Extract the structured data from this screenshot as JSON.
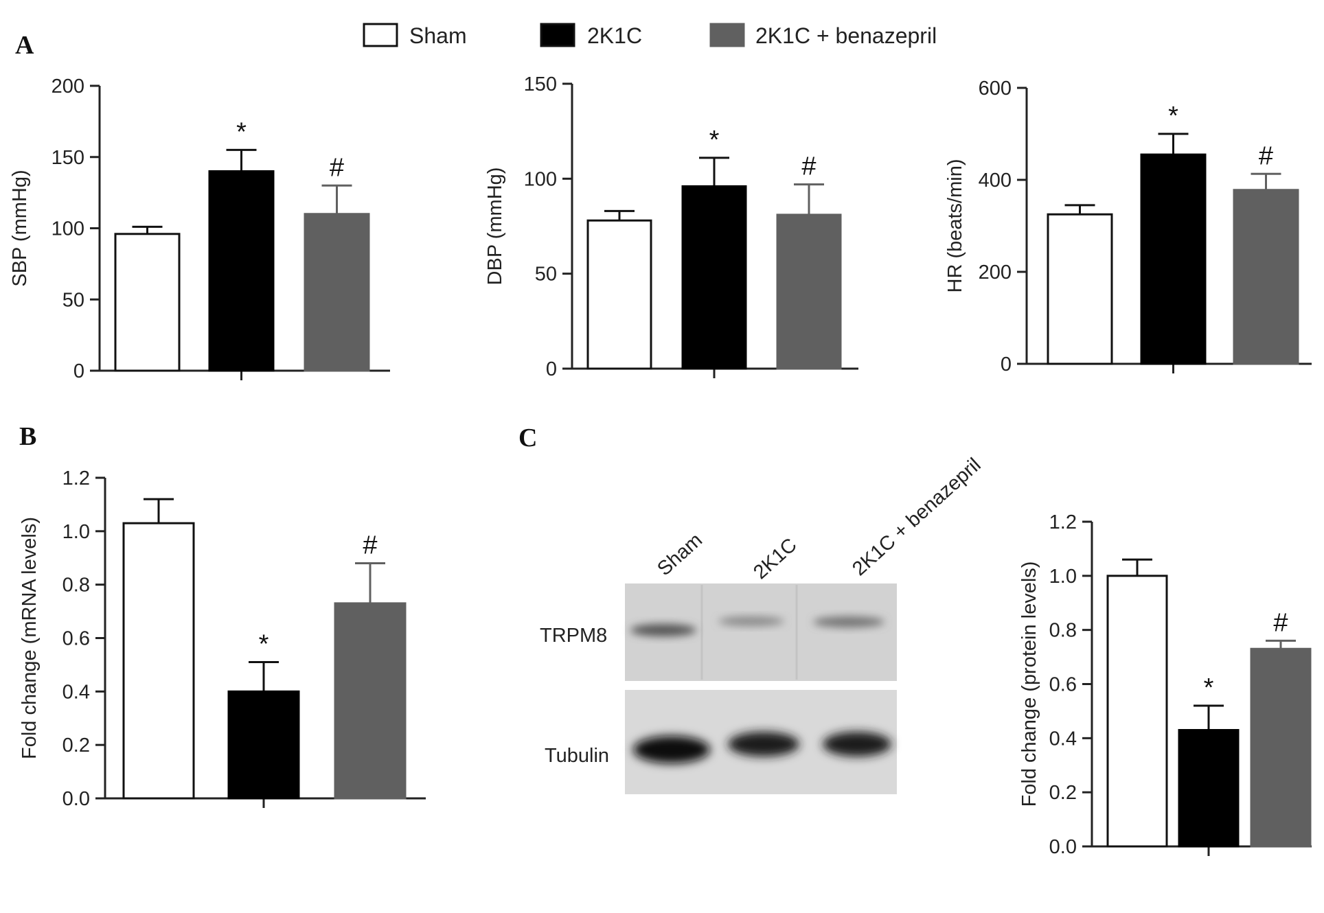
{
  "colors": {
    "sham": "#ffffff",
    "k2k1c": "#000000",
    "benazepril": "#606060",
    "axis": "#222222"
  },
  "legend": [
    {
      "label": "Sham",
      "color": "#ffffff"
    },
    {
      "label": "2K1C",
      "color": "#000000"
    },
    {
      "label": "2K1C + benazepril",
      "color": "#606060"
    }
  ],
  "panel_letters": {
    "a": "A",
    "b": "B",
    "c": "C"
  },
  "blot": {
    "lanes": [
      "Sham",
      "2K1C",
      "2K1C + benazepril"
    ],
    "rows": [
      "TRPM8",
      "Tubulin"
    ]
  },
  "chart_data": [
    {
      "id": "sbp",
      "type": "bar",
      "panel": "A",
      "categories": [
        "Sham",
        "2K1C",
        "2K1C + benazepril"
      ],
      "values": [
        96,
        140,
        110
      ],
      "errors": [
        5,
        15,
        20
      ],
      "significance": [
        "",
        "*",
        "#"
      ],
      "ylabel": "SBP (mmHg)",
      "xlabel": "",
      "ylim": [
        0,
        200
      ],
      "yticks": [
        0,
        50,
        100,
        150,
        200
      ],
      "yticklabels": [
        "0",
        "50",
        "100",
        "150",
        "200"
      ]
    },
    {
      "id": "dbp",
      "type": "bar",
      "panel": "A",
      "categories": [
        "Sham",
        "2K1C",
        "2K1C + benazepril"
      ],
      "values": [
        78,
        96,
        81
      ],
      "errors": [
        5,
        15,
        16
      ],
      "significance": [
        "",
        "*",
        "#"
      ],
      "ylabel": "DBP (mmHg)",
      "xlabel": "",
      "ylim": [
        0,
        150
      ],
      "yticks": [
        0,
        50,
        100,
        150
      ],
      "yticklabels": [
        "0",
        "50",
        "100",
        "150"
      ]
    },
    {
      "id": "hr",
      "type": "bar",
      "panel": "A",
      "categories": [
        "Sham",
        "2K1C",
        "2K1C + benazepril"
      ],
      "values": [
        325,
        455,
        378
      ],
      "errors": [
        20,
        45,
        35
      ],
      "significance": [
        "",
        "*",
        "#"
      ],
      "ylabel": "HR (beats/min)",
      "xlabel": "",
      "ylim": [
        0,
        600
      ],
      "yticks": [
        0,
        200,
        400,
        600
      ],
      "yticklabels": [
        "0",
        "200",
        "400",
        "600"
      ]
    },
    {
      "id": "mrna",
      "type": "bar",
      "panel": "B",
      "categories": [
        "Sham",
        "2K1C",
        "2K1C + benazepril"
      ],
      "values": [
        1.03,
        0.4,
        0.73
      ],
      "errors": [
        0.09,
        0.11,
        0.15
      ],
      "significance": [
        "",
        "*",
        "#"
      ],
      "ylabel": "Fold change (mRNA levels)",
      "xlabel": "",
      "ylim": [
        0,
        1.2
      ],
      "yticks": [
        0,
        0.2,
        0.4,
        0.6,
        0.8,
        1.0,
        1.2
      ],
      "yticklabels": [
        "0.0",
        "0.2",
        "0.4",
        "0.6",
        "0.8",
        "1.0",
        "1.2"
      ]
    },
    {
      "id": "protein",
      "type": "bar",
      "panel": "C",
      "categories": [
        "Sham",
        "2K1C",
        "2K1C + benazepril"
      ],
      "values": [
        1.0,
        0.43,
        0.73
      ],
      "errors": [
        0.06,
        0.09,
        0.03
      ],
      "significance": [
        "",
        "*",
        "#"
      ],
      "ylabel": "Fold change (protein levels)",
      "xlabel": "",
      "ylim": [
        0,
        1.2
      ],
      "yticks": [
        0,
        0.2,
        0.4,
        0.6,
        0.8,
        1.0,
        1.2
      ],
      "yticklabels": [
        "0.0",
        "0.2",
        "0.4",
        "0.6",
        "0.8",
        "1.0",
        "1.2"
      ]
    }
  ]
}
